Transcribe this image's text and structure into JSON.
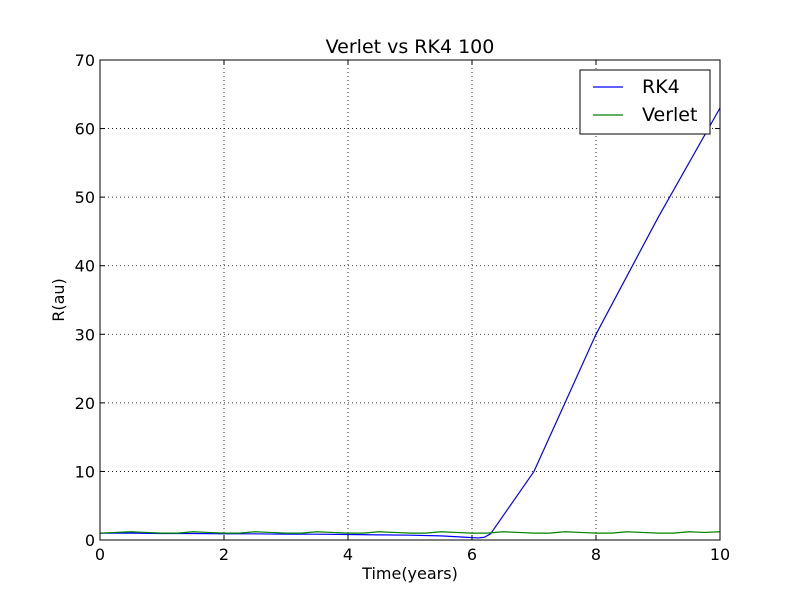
{
  "chart_data": {
    "type": "line",
    "title": "Verlet vs RK4  100",
    "xlabel": "Time(years)",
    "ylabel": "R(au)",
    "xlim": [
      0,
      10
    ],
    "ylim": [
      0,
      70
    ],
    "xticks": [
      0,
      2,
      4,
      6,
      8,
      10
    ],
    "yticks": [
      0,
      10,
      20,
      30,
      40,
      50,
      60,
      70
    ],
    "grid": true,
    "legend_position": "top-right",
    "series": [
      {
        "name": "RK4",
        "color": "#0000ff",
        "x": [
          0,
          0.5,
          1,
          1.5,
          2,
          2.5,
          3,
          3.5,
          4,
          4.5,
          5,
          5.5,
          5.9,
          6.1,
          6.2,
          6.3,
          7,
          8,
          9,
          10
        ],
        "y": [
          1.0,
          1.0,
          0.95,
          0.95,
          0.9,
          0.9,
          0.85,
          0.85,
          0.8,
          0.75,
          0.7,
          0.6,
          0.4,
          0.3,
          0.4,
          0.9,
          10.0,
          30.0,
          47.0,
          63.0
        ]
      },
      {
        "name": "Verlet",
        "color": "#008000",
        "x": [
          0,
          0.25,
          0.5,
          0.75,
          1,
          1.25,
          1.5,
          1.75,
          2,
          2.25,
          2.5,
          2.75,
          3,
          3.25,
          3.5,
          3.75,
          4,
          4.25,
          4.5,
          4.75,
          5,
          5.25,
          5.5,
          5.75,
          6,
          6.25,
          6.5,
          6.75,
          7,
          7.25,
          7.5,
          7.75,
          8,
          8.25,
          8.5,
          8.75,
          9,
          9.25,
          9.5,
          9.75,
          10
        ],
        "y": [
          1.0,
          1.1,
          1.2,
          1.1,
          1.0,
          1.0,
          1.2,
          1.1,
          1.0,
          1.0,
          1.2,
          1.1,
          1.0,
          1.0,
          1.2,
          1.1,
          1.0,
          1.0,
          1.2,
          1.1,
          1.0,
          1.0,
          1.2,
          1.1,
          1.0,
          1.0,
          1.2,
          1.1,
          1.0,
          1.0,
          1.2,
          1.1,
          1.0,
          1.0,
          1.2,
          1.1,
          1.0,
          1.0,
          1.2,
          1.1,
          1.2
        ]
      }
    ]
  }
}
